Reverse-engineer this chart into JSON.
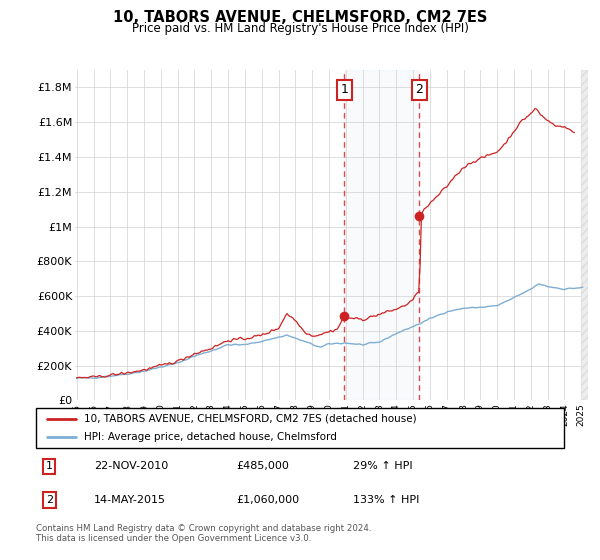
{
  "title": "10, TABORS AVENUE, CHELMSFORD, CM2 7ES",
  "subtitle": "Price paid vs. HM Land Registry's House Price Index (HPI)",
  "footer": "Contains HM Land Registry data © Crown copyright and database right 2024.\nThis data is licensed under the Open Government Licence v3.0.",
  "legend_line1": "10, TABORS AVENUE, CHELMSFORD, CM2 7ES (detached house)",
  "legend_line2": "HPI: Average price, detached house, Chelmsford",
  "transaction1_label": "1",
  "transaction1_date": "22-NOV-2010",
  "transaction1_price": "£485,000",
  "transaction1_hpi": "29% ↑ HPI",
  "transaction2_label": "2",
  "transaction2_date": "14-MAY-2015",
  "transaction2_price": "£1,060,000",
  "transaction2_hpi": "133% ↑ HPI",
  "hpi_color": "#7eaed3",
  "price_color": "#cc2222",
  "grid_color": "#d0d0d0",
  "ylim": [
    0,
    1900000
  ],
  "xlim_start": 1994.9,
  "xlim_end": 2025.4,
  "transaction1_x": 2010.9,
  "transaction1_y": 485000,
  "transaction2_x": 2015.37,
  "transaction2_y": 1060000,
  "shaded_alpha": 0.12,
  "hatch_start": 2025.0
}
